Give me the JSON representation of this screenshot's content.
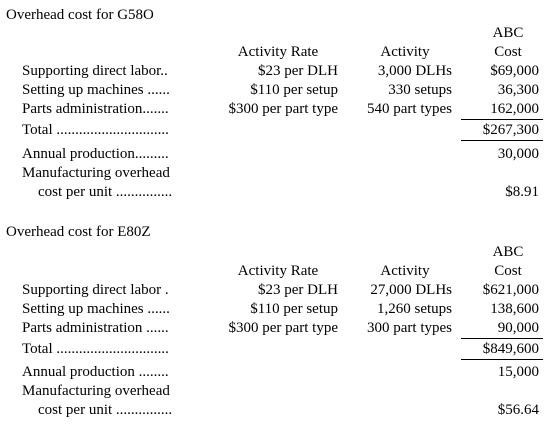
{
  "sections": [
    {
      "title": "Overhead cost for G58O",
      "headers": {
        "rate": "Activity Rate",
        "activity": "Activity",
        "cost_top": "ABC",
        "cost_bottom": "Cost"
      },
      "rows": [
        {
          "label": "Supporting direct labor..",
          "rate": "$23 per DLH",
          "activity": "3,000 DLHs",
          "cost": "$69,000"
        },
        {
          "label": "Setting up machines ......",
          "rate": "$110 per setup",
          "activity": "330 setups",
          "cost": "36,300"
        },
        {
          "label": "Parts administration.......",
          "rate": "$300 per part type",
          "activity": "540 part types",
          "cost": "162,000"
        }
      ],
      "total_label": "Total ..............................",
      "total_value": "$267,300",
      "production_label": "Annual production.........",
      "production_value": "30,000",
      "mcpu_label_1": "Manufacturing overhead",
      "mcpu_label_2": "cost per unit ...............",
      "mcpu_value": "$8.91"
    },
    {
      "title": "Overhead cost for E80Z",
      "headers": {
        "rate": "Activity Rate",
        "activity": "Activity",
        "cost_top": "ABC",
        "cost_bottom": "Cost"
      },
      "rows": [
        {
          "label": "Supporting direct labor .",
          "rate": "$23 per DLH",
          "activity": "27,000 DLHs",
          "cost": "$621,000"
        },
        {
          "label": "Setting up machines ......",
          "rate": "$110 per setup",
          "activity": "1,260 setups",
          "cost": "138,600"
        },
        {
          "label": "Parts administration ......",
          "rate": "$300 per part type",
          "activity": "300 part types",
          "cost": "90,000"
        }
      ],
      "total_label": "Total ..............................",
      "total_value": "$849,600",
      "production_label": "Annual production ........",
      "production_value": "15,000",
      "mcpu_label_1": "Manufacturing overhead",
      "mcpu_label_2": "cost per unit ...............",
      "mcpu_value": "$56.64"
    }
  ]
}
